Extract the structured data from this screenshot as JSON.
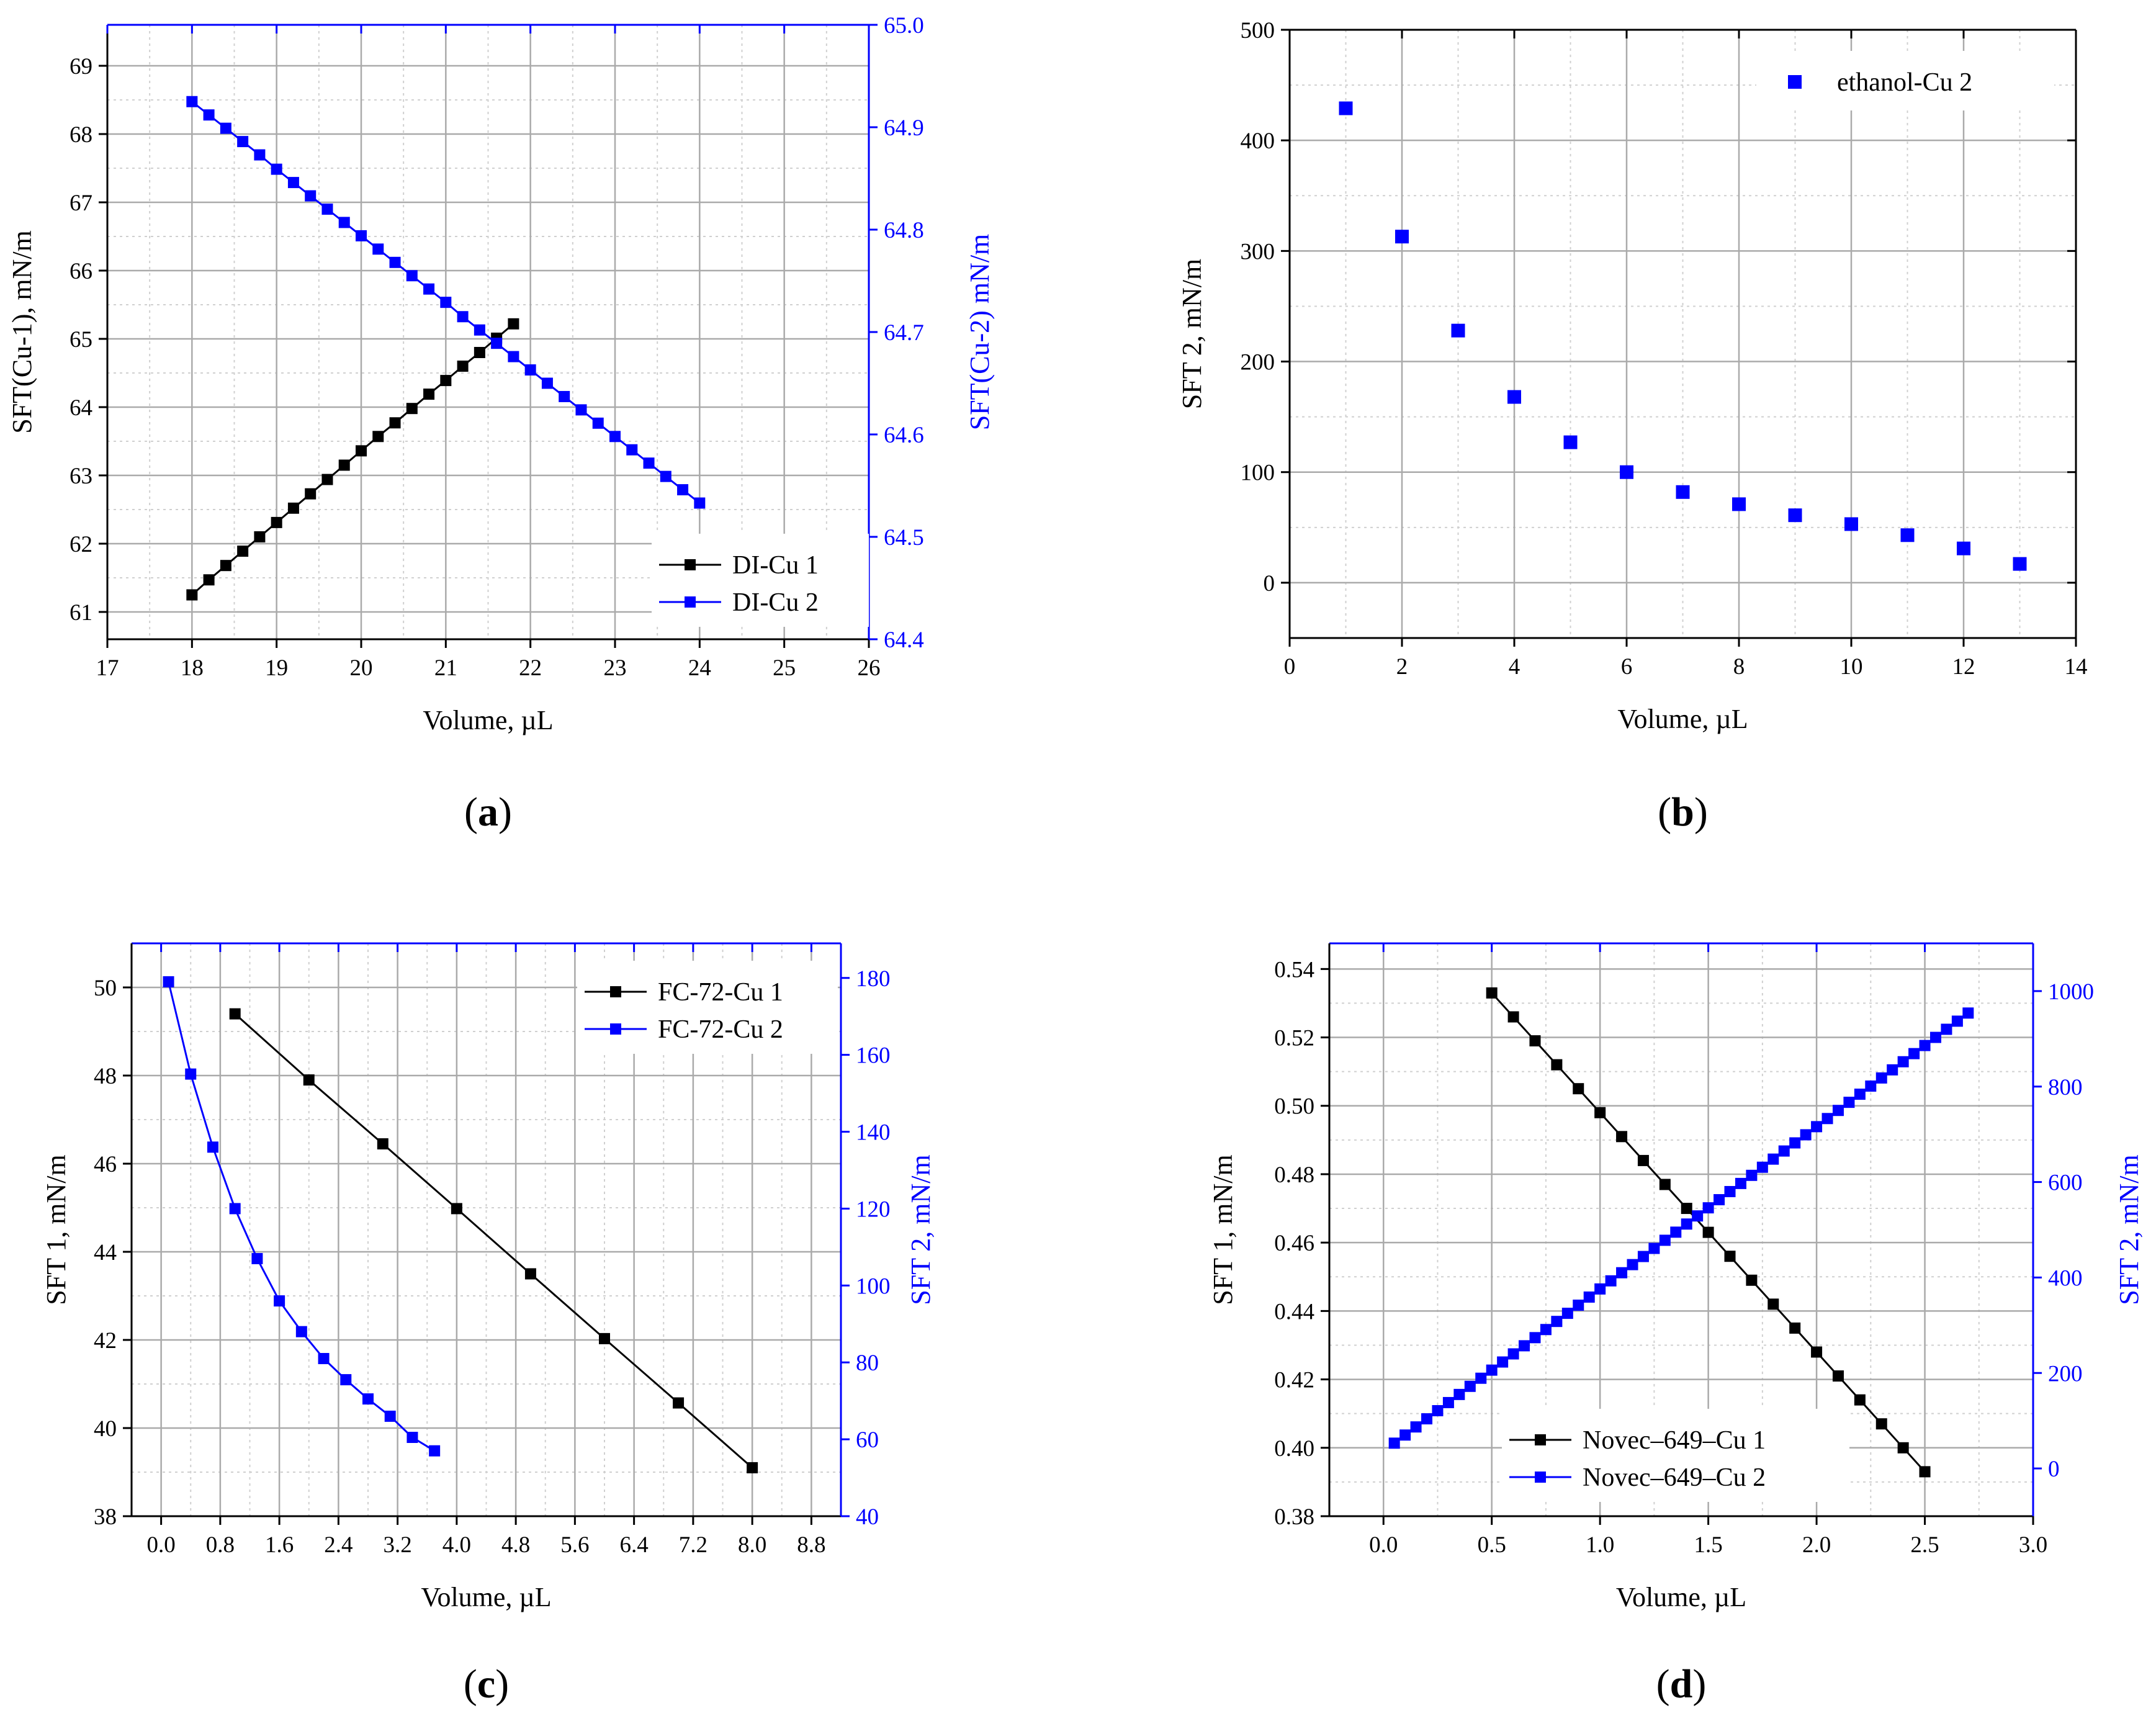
{
  "colors": {
    "black": "#000000",
    "blue": "#0000ff",
    "grid": "#aaaaaa",
    "minor_grid": "#d0d0d0"
  },
  "chart_data": [
    {
      "id": "a",
      "type": "line",
      "panel_label": {
        "open": "(",
        "letter": "a",
        "close": ")"
      },
      "xlabel": "Volume, µL",
      "ylabel": "SFT(Cu-1), mN/m",
      "ylabel_right": "SFT(Cu-2) mN/m",
      "xlim": [
        17,
        26
      ],
      "ylim": [
        60.6,
        69.6
      ],
      "ylim_right": [
        64.4,
        65.0
      ],
      "x_ticks": [
        17,
        18,
        19,
        20,
        21,
        22,
        23,
        24,
        25,
        26
      ],
      "x_tick_labels": [
        "17",
        "18",
        "19",
        "20",
        "21",
        "22",
        "23",
        "24",
        "25",
        "26"
      ],
      "y_ticks": [
        61,
        62,
        63,
        64,
        65,
        66,
        67,
        68,
        69
      ],
      "y_tick_labels": [
        "61",
        "62",
        "63",
        "64",
        "65",
        "66",
        "67",
        "68",
        "69"
      ],
      "y_right_ticks": [
        64.4,
        64.5,
        64.6,
        64.7,
        64.8,
        64.9,
        65.0
      ],
      "y_right_tick_labels": [
        "64.4",
        "64.5",
        "64.6",
        "64.7",
        "64.8",
        "64.9",
        "65.0"
      ],
      "legend_position": "lower-right",
      "series": [
        {
          "name": "DI-Cu 1",
          "axis": "left",
          "color": "#000000",
          "line": true,
          "x": [
            18.0,
            18.2,
            18.4,
            18.6,
            18.8,
            19.0,
            19.2,
            19.4,
            19.6,
            19.8,
            20.0,
            20.2,
            20.4,
            20.6,
            20.8,
            21.0,
            21.2,
            21.4,
            21.6,
            21.8
          ],
          "y": [
            61.25,
            61.47,
            61.68,
            61.89,
            62.1,
            62.31,
            62.52,
            62.73,
            62.94,
            63.15,
            63.36,
            63.57,
            63.77,
            63.98,
            64.19,
            64.39,
            64.6,
            64.8,
            65.01,
            65.22
          ]
        },
        {
          "name": "DI-Cu 2",
          "axis": "right",
          "color": "#0000ff",
          "line": true,
          "x": [
            18.0,
            18.2,
            18.4,
            18.6,
            18.8,
            19.0,
            19.2,
            19.4,
            19.6,
            19.8,
            20.0,
            20.2,
            20.4,
            20.6,
            20.8,
            21.0,
            21.2,
            21.4,
            21.6,
            21.8,
            22.0,
            22.2,
            22.4,
            22.6,
            22.8,
            23.0,
            23.2,
            23.4,
            23.6,
            23.8,
            24.0
          ],
          "y": [
            64.925,
            64.912,
            64.899,
            64.886,
            64.873,
            64.859,
            64.846,
            64.833,
            64.82,
            64.807,
            64.794,
            64.781,
            64.768,
            64.755,
            64.742,
            64.729,
            64.715,
            64.702,
            64.689,
            64.676,
            64.663,
            64.65,
            64.637,
            64.624,
            64.611,
            64.598,
            64.585,
            64.572,
            64.559,
            64.546,
            64.533
          ]
        }
      ]
    },
    {
      "id": "b",
      "type": "scatter",
      "panel_label": {
        "open": "(",
        "letter": "b",
        "close": ")"
      },
      "xlabel": "Volume, µL",
      "ylabel": "SFT 2, mN/m",
      "xlim": [
        0,
        14
      ],
      "ylim": [
        -50,
        500
      ],
      "x_ticks": [
        0,
        2,
        4,
        6,
        8,
        10,
        12,
        14
      ],
      "x_tick_labels": [
        "0",
        "2",
        "4",
        "6",
        "8",
        "10",
        "12",
        "14"
      ],
      "y_ticks": [
        0,
        100,
        200,
        300,
        400,
        500
      ],
      "y_tick_labels": [
        "0",
        "100",
        "200",
        "300",
        "400",
        "500"
      ],
      "legend_position": "top-right",
      "series": [
        {
          "name": "ethanol-Cu 2",
          "axis": "left",
          "color": "#0000ff",
          "line": false,
          "x": [
            1,
            2,
            3,
            4,
            5,
            6,
            7,
            8,
            9,
            10,
            11,
            12,
            13
          ],
          "y": [
            429,
            313,
            228,
            168,
            127,
            100,
            82,
            71,
            61,
            53,
            43,
            31,
            17
          ]
        }
      ]
    },
    {
      "id": "c",
      "type": "line",
      "panel_label": {
        "open": "(",
        "letter": "c",
        "close": ")"
      },
      "xlabel": "Volume, µL",
      "ylabel": "SFT 1, mN/m",
      "ylabel_right": "SFT 2, mN/m",
      "xlim": [
        -0.4,
        9.2
      ],
      "ylim": [
        38,
        51
      ],
      "ylim_right": [
        40,
        189
      ],
      "x_ticks": [
        0.0,
        0.8,
        1.6,
        2.4,
        3.2,
        4.0,
        4.8,
        5.6,
        6.4,
        7.2,
        8.0,
        8.8
      ],
      "x_tick_labels": [
        "0.0",
        "0.8",
        "1.6",
        "2.4",
        "3.2",
        "4.0",
        "4.8",
        "5.6",
        "6.4",
        "7.2",
        "8.0",
        "8.8"
      ],
      "y_ticks": [
        38,
        40,
        42,
        44,
        46,
        48,
        50
      ],
      "y_tick_labels": [
        "38",
        "40",
        "42",
        "44",
        "46",
        "48",
        "50"
      ],
      "y_right_ticks": [
        40,
        60,
        80,
        100,
        120,
        140,
        160,
        180
      ],
      "y_right_tick_labels": [
        "40",
        "60",
        "80",
        "100",
        "120",
        "140",
        "160",
        "180"
      ],
      "legend_position": "top-right",
      "series": [
        {
          "name": "FC-72-Cu 1",
          "axis": "left",
          "color": "#000000",
          "line": true,
          "x": [
            1,
            2,
            3,
            4,
            5,
            6,
            7,
            8
          ],
          "y": [
            49.4,
            47.9,
            46.45,
            44.98,
            43.5,
            42.03,
            40.57,
            39.1
          ]
        },
        {
          "name": "FC-72-Cu 2",
          "axis": "right",
          "color": "#0000ff",
          "line": true,
          "x": [
            0.1,
            0.4,
            0.7,
            1.0,
            1.3,
            1.6,
            1.9,
            2.2,
            2.5,
            2.8,
            3.1,
            3.4,
            3.7
          ],
          "y": [
            179,
            155,
            136,
            120,
            107,
            96,
            88,
            81,
            75.5,
            70.5,
            66,
            60.5,
            57
          ]
        }
      ]
    },
    {
      "id": "d",
      "type": "line",
      "panel_label": {
        "open": "(",
        "letter": "d",
        "close": ")"
      },
      "xlabel": "Volume, µL",
      "ylabel": "SFT 1, mN/m",
      "ylabel_right": "SFT 2, mN/m",
      "xlim": [
        -0.25,
        3.0
      ],
      "ylim": [
        0.38,
        0.5475
      ],
      "ylim_right": [
        -100,
        1100
      ],
      "x_ticks": [
        0.0,
        0.5,
        1.0,
        1.5,
        2.0,
        2.5,
        3.0
      ],
      "x_tick_labels": [
        "0.0",
        "0.5",
        "1.0",
        "1.5",
        "2.0",
        "2.5",
        "3.0"
      ],
      "y_ticks": [
        0.38,
        0.4,
        0.42,
        0.44,
        0.46,
        0.48,
        0.5,
        0.52,
        0.54
      ],
      "y_tick_labels": [
        "0.38",
        "0.40",
        "0.42",
        "0.44",
        "0.46",
        "0.48",
        "0.50",
        "0.52",
        "0.54"
      ],
      "y_right_ticks": [
        0,
        200,
        400,
        600,
        800,
        1000
      ],
      "y_right_tick_labels": [
        "0",
        "200",
        "400",
        "600",
        "800",
        "1000"
      ],
      "legend_position": "bottom-center",
      "series": [
        {
          "name": "Novec–649–Cu 1",
          "axis": "left",
          "color": "#000000",
          "line": true,
          "x": [
            0.5,
            0.6,
            0.7,
            0.8,
            0.9,
            1.0,
            1.1,
            1.2,
            1.3,
            1.4,
            1.5,
            1.6,
            1.7,
            1.8,
            1.9,
            2.0,
            2.1,
            2.2,
            2.3,
            2.4,
            2.5
          ],
          "y": [
            0.533,
            0.526,
            0.519,
            0.512,
            0.505,
            0.498,
            0.491,
            0.484,
            0.477,
            0.47,
            0.463,
            0.456,
            0.449,
            0.442,
            0.435,
            0.428,
            0.421,
            0.414,
            0.407,
            0.4,
            0.393
          ]
        },
        {
          "name": "Novec–649–Cu 2",
          "axis": "right",
          "color": "#0000ff",
          "line": true,
          "x": [
            0.05,
            0.1,
            0.15,
            0.2,
            0.25,
            0.3,
            0.35,
            0.4,
            0.45,
            0.5,
            0.55,
            0.6,
            0.65,
            0.7,
            0.75,
            0.8,
            0.85,
            0.9,
            0.95,
            1.0,
            1.05,
            1.1,
            1.15,
            1.2,
            1.25,
            1.3,
            1.35,
            1.4,
            1.45,
            1.5,
            1.55,
            1.6,
            1.65,
            1.7,
            1.75,
            1.8,
            1.85,
            1.9,
            1.95,
            2.0,
            2.05,
            2.1,
            2.15,
            2.2,
            2.25,
            2.3,
            2.35,
            2.4,
            2.45,
            2.5,
            2.55,
            2.6,
            2.65,
            2.7
          ],
          "y": [
            53,
            70,
            87,
            104,
            121,
            138,
            155,
            172,
            189,
            206,
            223,
            240,
            257,
            274,
            291,
            308,
            325,
            342,
            359,
            376,
            393,
            410,
            427,
            444,
            461,
            478,
            495,
            512,
            529,
            546,
            563,
            580,
            597,
            614,
            631,
            648,
            665,
            682,
            699,
            716,
            733,
            750,
            767,
            784,
            801,
            818,
            835,
            852,
            869,
            886,
            903,
            920,
            937,
            954
          ]
        }
      ]
    }
  ]
}
